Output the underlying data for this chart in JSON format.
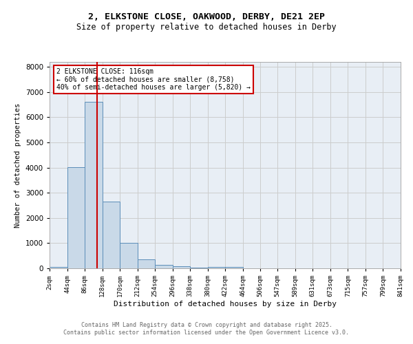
{
  "title1": "2, ELKSTONE CLOSE, OAKWOOD, DERBY, DE21 2EP",
  "title2": "Size of property relative to detached houses in Derby",
  "xlabel": "Distribution of detached houses by size in Derby",
  "ylabel": "Number of detached properties",
  "bar_color": "#c9d9e8",
  "bar_edge_color": "#5b8db8",
  "bins": [
    2,
    44,
    86,
    128,
    170,
    212,
    254,
    296,
    338,
    380,
    422,
    464,
    506,
    547,
    589,
    631,
    673,
    715,
    757,
    799,
    841
  ],
  "heights": [
    50,
    4020,
    6620,
    2650,
    1000,
    350,
    130,
    70,
    40,
    50,
    50,
    0,
    0,
    0,
    0,
    0,
    0,
    0,
    0,
    0
  ],
  "property_size": 116,
  "red_line_color": "#cc0000",
  "annotation_text": "2 ELKSTONE CLOSE: 116sqm\n← 60% of detached houses are smaller (8,758)\n40% of semi-detached houses are larger (5,820) →",
  "annotation_box_color": "#ffffff",
  "annotation_box_edge_color": "#cc0000",
  "ylim": [
    0,
    8200
  ],
  "yticks": [
    0,
    1000,
    2000,
    3000,
    4000,
    5000,
    6000,
    7000,
    8000
  ],
  "grid_color": "#cccccc",
  "background_color": "#e8eef5",
  "footer_text": "Contains HM Land Registry data © Crown copyright and database right 2025.\nContains public sector information licensed under the Open Government Licence v3.0.",
  "tick_labels": [
    "2sqm",
    "44sqm",
    "86sqm",
    "128sqm",
    "170sqm",
    "212sqm",
    "254sqm",
    "296sqm",
    "338sqm",
    "380sqm",
    "422sqm",
    "464sqm",
    "506sqm",
    "547sqm",
    "589sqm",
    "631sqm",
    "673sqm",
    "715sqm",
    "757sqm",
    "799sqm",
    "841sqm"
  ]
}
